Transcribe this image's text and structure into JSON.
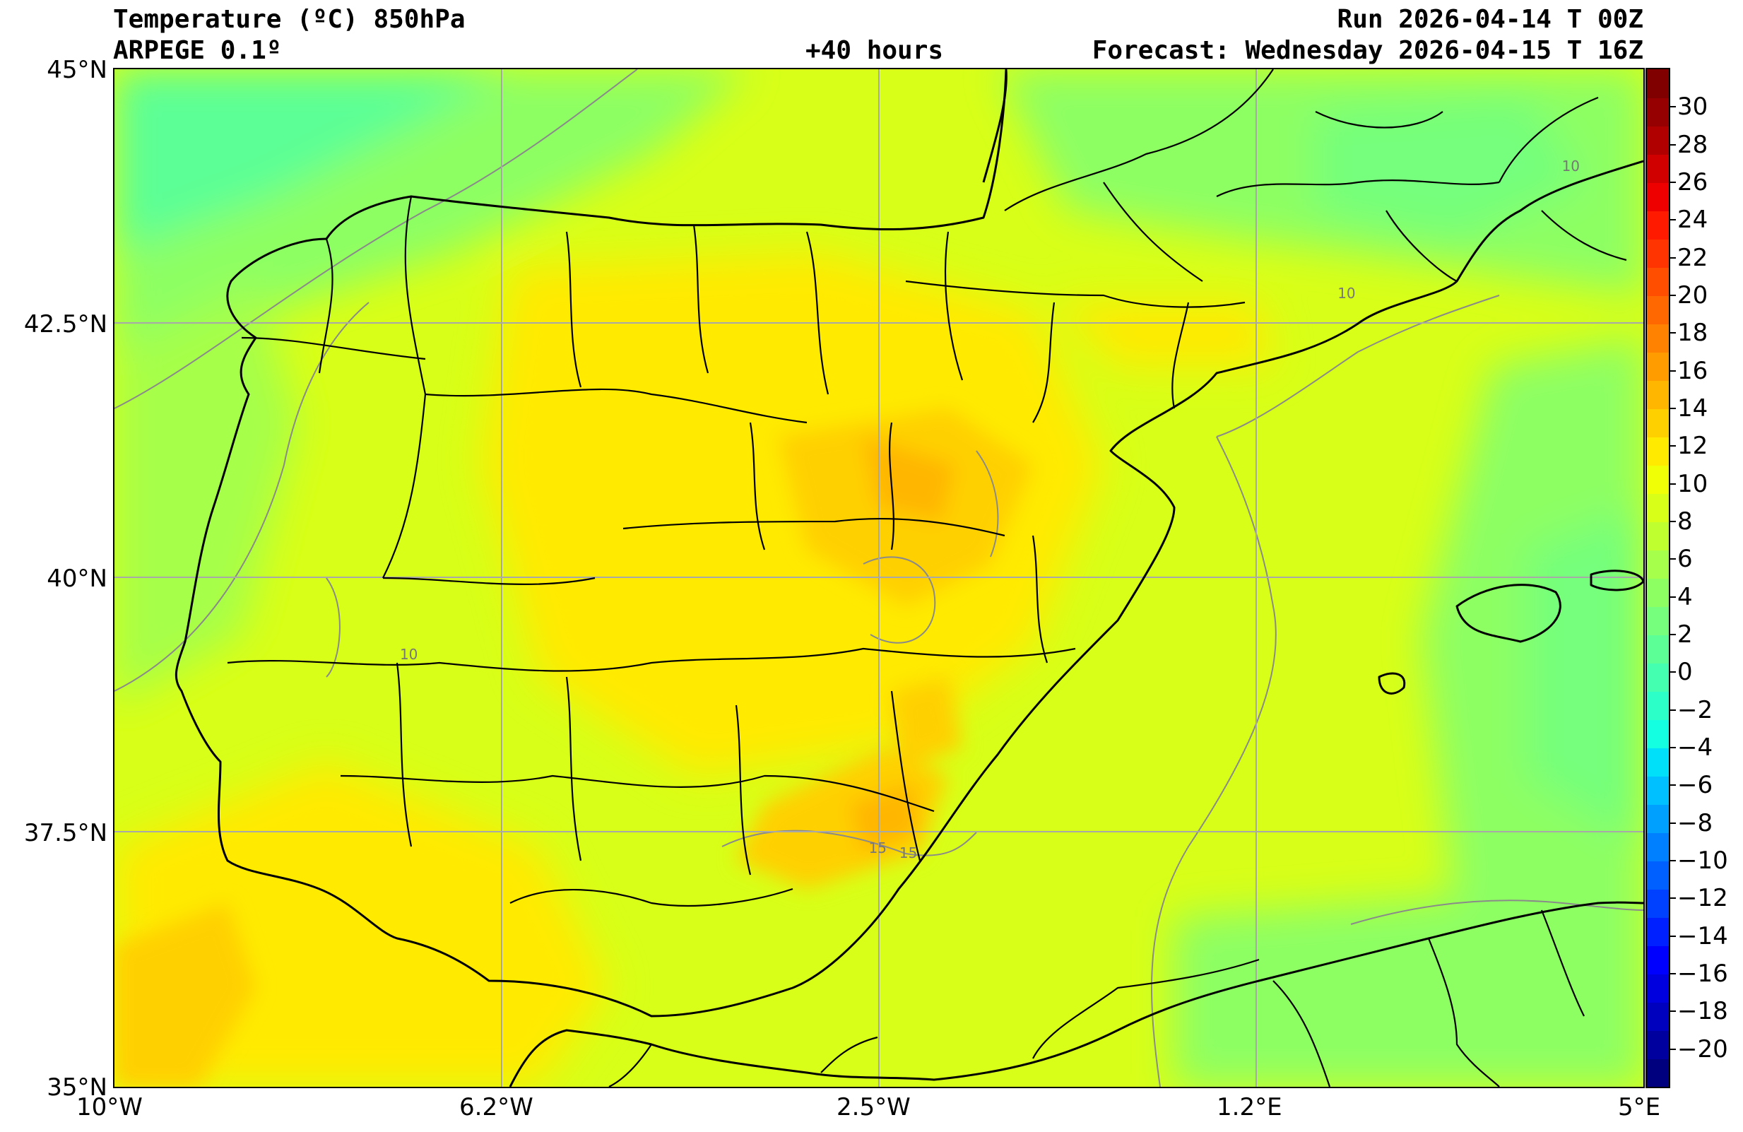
{
  "header": {
    "title": "Temperature (ºC) 850hPa",
    "model": "ARPEGE 0.1º",
    "lead_time": "+40 hours",
    "run": "Run 2026-04-14 T 00Z",
    "forecast": "Forecast: Wednesday 2026-04-15 T 16Z"
  },
  "map": {
    "extent": {
      "lon_min": -10,
      "lon_max": 5,
      "lat_min": 35,
      "lat_max": 45
    },
    "lat_ticks": [
      {
        "value": 45,
        "label": "45°N"
      },
      {
        "value": 42.5,
        "label": "42.5°N"
      },
      {
        "value": 40,
        "label": "40°N"
      },
      {
        "value": 37.5,
        "label": "37.5°N"
      },
      {
        "value": 35,
        "label": "35°N"
      }
    ],
    "lon_ticks": [
      {
        "value": -10,
        "label": "10°W"
      },
      {
        "value": -6.2,
        "label": "6.2°W"
      },
      {
        "value": -2.5,
        "label": "2.5°W"
      },
      {
        "value": 1.2,
        "label": "1.2°E"
      },
      {
        "value": 5,
        "label": "5°E"
      }
    ],
    "contour_labels": [
      {
        "lon": -7.2,
        "lat": 39.2,
        "label": "10"
      },
      {
        "lon": 2.0,
        "lat": 42.75,
        "label": "10"
      },
      {
        "lon": 4.2,
        "lat": 44.0,
        "label": "10"
      },
      {
        "lon": -2.6,
        "lat": 37.3,
        "label": "15"
      },
      {
        "lon": -2.3,
        "lat": 37.25,
        "label": "15"
      }
    ]
  },
  "colorbar": {
    "min": -22,
    "max": 32,
    "colors": [
      "#00007f",
      "#00009f",
      "#0000bf",
      "#0000df",
      "#0000ff",
      "#0020ff",
      "#0040ff",
      "#0060ff",
      "#0080ff",
      "#00a0ff",
      "#00c0ff",
      "#00e0f8",
      "#14ffe2",
      "#2cffc8",
      "#44ffaf",
      "#5cff96",
      "#75ff7c",
      "#8dff63",
      "#a6ff4a",
      "#bfff30",
      "#d8ff17",
      "#f0ff05",
      "#ffea00",
      "#ffd000",
      "#ffb600",
      "#ff9c00",
      "#ff8200",
      "#ff6800",
      "#ff4e00",
      "#ff3400",
      "#ff1a00",
      "#ef0000",
      "#d00000",
      "#b00000",
      "#960000",
      "#800000"
    ],
    "labels": [
      "30",
      "28",
      "26",
      "24",
      "22",
      "20",
      "18",
      "16",
      "14",
      "12",
      "10",
      "8",
      "6",
      "4",
      "2",
      "0",
      "−2",
      "−4",
      "−6",
      "−8",
      "−10",
      "−12",
      "−14",
      "−16",
      "−18",
      "−20"
    ],
    "label_values": [
      30,
      28,
      26,
      24,
      22,
      20,
      18,
      16,
      14,
      12,
      10,
      8,
      6,
      4,
      2,
      0,
      -2,
      -4,
      -6,
      -8,
      -10,
      -12,
      -14,
      -16,
      -18,
      -20
    ]
  }
}
